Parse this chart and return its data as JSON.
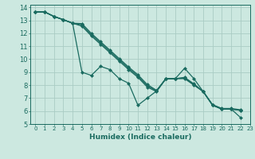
{
  "title": "",
  "xlabel": "Humidex (Indice chaleur)",
  "bg_color": "#cce8e0",
  "grid_color": "#aaccc4",
  "line_color": "#1a6b60",
  "xlim": [
    -0.5,
    23
  ],
  "ylim": [
    5,
    14.2
  ],
  "xticks": [
    0,
    1,
    2,
    3,
    4,
    5,
    6,
    7,
    8,
    9,
    10,
    11,
    12,
    13,
    14,
    15,
    16,
    17,
    18,
    19,
    20,
    21,
    22,
    23
  ],
  "yticks": [
    5,
    6,
    7,
    8,
    9,
    10,
    11,
    12,
    13,
    14
  ],
  "lines": [
    [
      13.65,
      13.65,
      13.3,
      13.05,
      12.78,
      9.0,
      8.75,
      9.45,
      9.2,
      8.5,
      8.15,
      6.45,
      7.0,
      7.55,
      8.5,
      8.5,
      9.3,
      8.5,
      7.5,
      6.5,
      6.2,
      6.2,
      6.1
    ],
    [
      13.65,
      13.65,
      13.3,
      13.05,
      12.78,
      12.55,
      11.8,
      11.15,
      10.5,
      9.85,
      9.2,
      8.6,
      7.85,
      7.5,
      8.5,
      8.5,
      8.5,
      8.0,
      7.5,
      6.45,
      6.15,
      6.15,
      6.05
    ],
    [
      13.65,
      13.65,
      13.3,
      13.05,
      12.78,
      12.65,
      11.9,
      11.25,
      10.6,
      9.95,
      9.3,
      8.7,
      7.95,
      7.55,
      8.5,
      8.5,
      8.55,
      8.05,
      7.5,
      6.45,
      6.15,
      6.15,
      6.05
    ],
    [
      13.65,
      13.65,
      13.3,
      13.05,
      12.78,
      12.75,
      12.0,
      11.35,
      10.7,
      10.05,
      9.4,
      8.8,
      8.05,
      7.6,
      8.5,
      8.5,
      8.6,
      8.1,
      7.5,
      6.45,
      6.15,
      6.15,
      5.5
    ]
  ]
}
